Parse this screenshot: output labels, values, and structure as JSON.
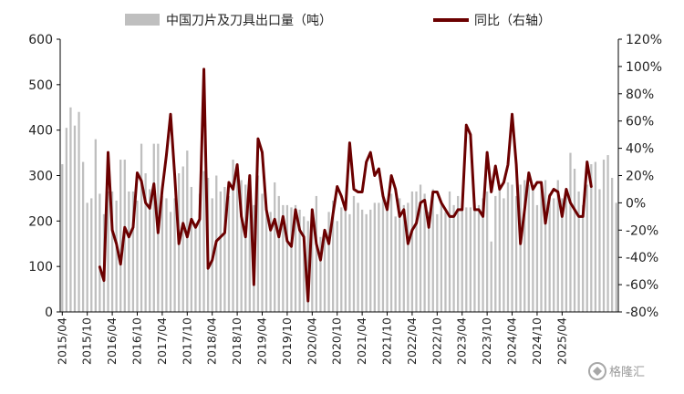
{
  "legend": {
    "bar_label": "中国刀片及刀具出口量（吨）",
    "line_label": "同比（右轴）"
  },
  "watermark": "格隆汇",
  "colors": {
    "bar": "#bfbfbf",
    "line": "#6b0000",
    "axis": "#000000",
    "text": "#222222"
  },
  "chart_data": {
    "type": "bar",
    "title": "",
    "xlabel": "",
    "ylabel": "",
    "y_left_lim": [
      0,
      600
    ],
    "y_left_ticks": [
      "600",
      "500",
      "400",
      "300",
      "200",
      "100",
      "0"
    ],
    "y_right_lim": [
      -80,
      120
    ],
    "y_right_ticks": [
      "120%",
      "100%",
      "80%",
      "60%",
      "40%",
      "20%",
      "0%",
      "-20%",
      "-40%",
      "-60%",
      "-80%"
    ],
    "x_tick_labels": [
      "2015/04",
      "2015/10",
      "2016/04",
      "2016/10",
      "2017/04",
      "2017/10",
      "2018/04",
      "2018/10",
      "2019/04",
      "2019/10",
      "2020/04",
      "2020/10",
      "2021/04",
      "2021/10",
      "2022/04",
      "2022/10",
      "2023/04",
      "2023/10",
      "2024/04",
      "2024/10",
      "2025/04"
    ],
    "grid": false,
    "legend_position": "top",
    "start_month": "2015/04",
    "series": [
      {
        "name": "中国刀片及刀具出口量（吨）",
        "type": "bar",
        "axis": "left",
        "values": [
          325,
          405,
          450,
          410,
          440,
          330,
          240,
          250,
          380,
          260,
          215,
          265,
          265,
          245,
          335,
          335,
          265,
          265,
          245,
          370,
          305,
          270,
          370,
          370,
          255,
          250,
          220,
          250,
          305,
          320,
          355,
          275,
          195,
          260,
          310,
          295,
          250,
          300,
          265,
          275,
          255,
          335,
          310,
          290,
          280,
          260,
          235,
          300,
          260,
          230,
          220,
          285,
          255,
          235,
          235,
          230,
          235,
          225,
          210,
          200,
          215,
          255,
          165,
          180,
          220,
          245,
          200,
          230,
          240,
          215,
          255,
          240,
          225,
          215,
          225,
          240,
          240,
          260,
          225,
          260,
          210,
          250,
          235,
          240,
          265,
          265,
          280,
          260,
          220,
          270,
          215,
          245,
          220,
          265,
          235,
          255,
          230,
          230,
          230,
          230,
          235,
          250,
          265,
          155,
          255,
          270,
          250,
          285,
          280,
          255,
          280,
          290,
          280,
          270,
          235,
          275,
          290,
          260,
          250,
          290,
          250,
          260,
          350,
          315,
          265,
          235,
          280,
          325,
          330,
          270,
          335,
          345,
          295,
          240
        ]
      },
      {
        "name": "同比（右轴）",
        "type": "line",
        "axis": "right",
        "values": [
          null,
          null,
          null,
          null,
          null,
          null,
          null,
          null,
          null,
          -47,
          -57,
          37,
          -20,
          -30,
          -45,
          -18,
          -25,
          -18,
          22,
          16,
          0,
          -4,
          14,
          -22,
          10,
          35,
          65,
          20,
          -30,
          -15,
          -25,
          -12,
          -18,
          -12,
          98,
          -48,
          -42,
          -28,
          -25,
          -22,
          15,
          10,
          28,
          -10,
          -25,
          20,
          -60,
          47,
          37,
          -5,
          -20,
          -12,
          -25,
          -10,
          -28,
          -32,
          -5,
          -20,
          -25,
          -72,
          -5,
          -30,
          -42,
          -20,
          -30,
          -8,
          12,
          5,
          -5,
          44,
          10,
          8,
          8,
          30,
          37,
          20,
          25,
          5,
          -5,
          20,
          10,
          -10,
          -5,
          -30,
          -20,
          -15,
          0,
          2,
          -18,
          8,
          8,
          0,
          -5,
          -10,
          -10,
          -5,
          -5,
          57,
          50,
          -5,
          -5,
          -10,
          37,
          8,
          27,
          10,
          15,
          28,
          65,
          28,
          -30,
          -5,
          22,
          10,
          15,
          15,
          -15,
          5,
          10,
          8,
          -10,
          10,
          0,
          -5,
          -10,
          -10,
          30,
          12
        ]
      }
    ]
  }
}
